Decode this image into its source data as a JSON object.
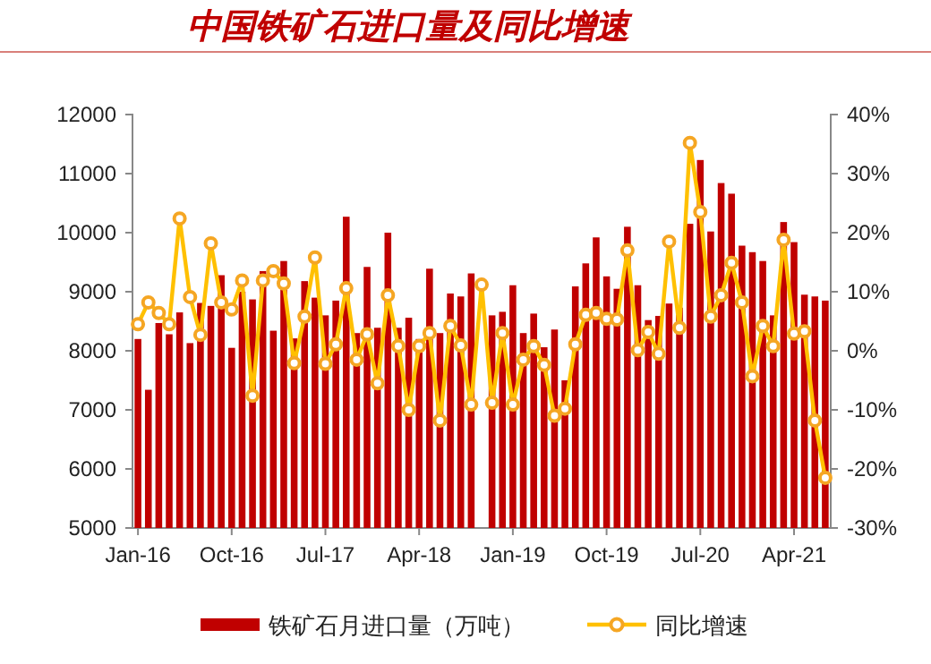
{
  "chart_data": {
    "type": "bar",
    "title": "中国铁矿石进口量及同比增速",
    "categories": [
      "Jan-16",
      null,
      null,
      null,
      null,
      null,
      null,
      null,
      null,
      "Oct-16",
      null,
      null,
      null,
      null,
      null,
      null,
      null,
      null,
      "Jul-17",
      null,
      null,
      null,
      null,
      null,
      null,
      null,
      null,
      "Apr-18",
      null,
      null,
      null,
      null,
      null,
      null,
      null,
      null,
      "Jan-19",
      null,
      null,
      null,
      null,
      null,
      null,
      null,
      null,
      "Oct-19",
      null,
      null,
      null,
      null,
      null,
      null,
      null,
      null,
      "Jul-20",
      null,
      null,
      null,
      null,
      null,
      null,
      null,
      null,
      "Apr-21",
      null,
      null,
      null
    ],
    "series": [
      {
        "name": "铁矿石月进口量（万吨）",
        "color": "#c00000",
        "values": [
          8200,
          7340,
          8470,
          8280,
          8650,
          8130,
          8810,
          8760,
          9280,
          8050,
          9000,
          8870,
          9350,
          8340,
          9520,
          8210,
          9180,
          8900,
          8600,
          8850,
          10270,
          8300,
          9420,
          8390,
          10000,
          8390,
          8560,
          8200,
          9390,
          8300,
          8970,
          8920,
          9310,
          null,
          8600,
          8660,
          9110,
          8300,
          8630,
          8060,
          8360,
          7500,
          9090,
          9480,
          9920,
          9260,
          9050,
          10100,
          9110,
          8520,
          8590,
          8800,
          8730,
          10150,
          11230,
          10020,
          10840,
          10660,
          9780,
          9670,
          9520,
          8600,
          10180,
          9840,
          8950,
          8920,
          8850
        ]
      },
      {
        "name": "同比增速",
        "type": "line",
        "axis": "y2",
        "color": "#ffc000",
        "marker": "circle",
        "values": [
          4.5,
          8.2,
          6.4,
          4.5,
          22.4,
          9.1,
          2.7,
          18.2,
          8.2,
          7.0,
          11.9,
          -7.6,
          11.9,
          13.5,
          11.4,
          -2.1,
          5.8,
          15.8,
          -2.2,
          1.1,
          10.6,
          -1.5,
          2.8,
          -5.5,
          9.4,
          0.8,
          -10.0,
          0.8,
          3.0,
          -11.8,
          4.2,
          0.9,
          -9.1,
          11.2,
          -8.8,
          3.0,
          -9.1,
          -1.5,
          0.8,
          -2.4,
          -11.0,
          -9.8,
          1.1,
          6.1,
          6.4,
          5.4,
          5.3,
          17.0,
          0.1,
          3.2,
          -0.5,
          18.5,
          3.9,
          35.2,
          23.5,
          5.8,
          9.4,
          14.9,
          8.2,
          -4.3,
          4.2,
          0.8,
          18.8,
          2.9,
          3.3,
          -11.8,
          -21.5
        ]
      }
    ],
    "ylim": [
      5000,
      12000
    ],
    "yticks": [
      5000,
      6000,
      7000,
      8000,
      9000,
      10000,
      11000,
      12000
    ],
    "y2lim": [
      -30,
      40
    ],
    "y2ticks": [
      {
        "value": -30,
        "label": "-30%"
      },
      {
        "value": -20,
        "label": "-20%"
      },
      {
        "value": -10,
        "label": "-10%"
      },
      {
        "value": 0,
        "label": "0%"
      },
      {
        "value": 10,
        "label": "10%"
      },
      {
        "value": 20,
        "label": "20%"
      },
      {
        "value": 30,
        "label": "30%"
      },
      {
        "value": 40,
        "label": "40%"
      }
    ],
    "legend": "bottom"
  }
}
